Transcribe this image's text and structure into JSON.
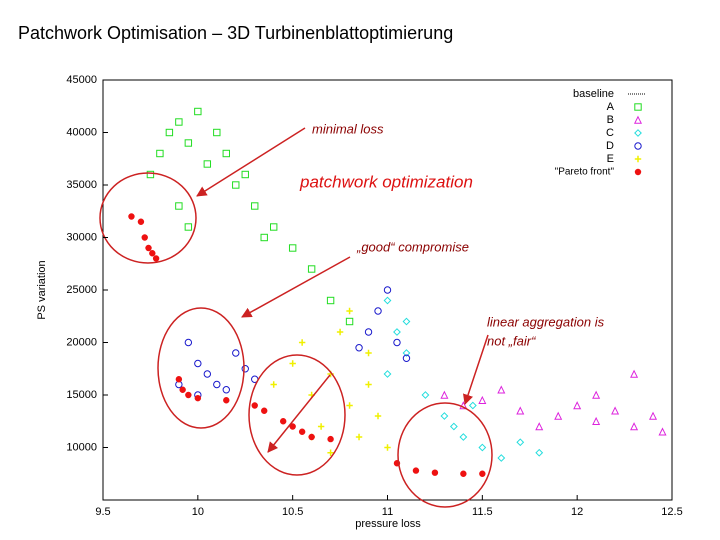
{
  "title": "Patchwork Optimisation – 3D Turbinenblattoptimierung",
  "chart_data": {
    "type": "scatter",
    "x_label": "pressure loss",
    "y_label": "PS variation",
    "xlim": [
      9.5,
      12.5
    ],
    "xticks": [
      9.5,
      10,
      10.5,
      11,
      11.5,
      12,
      12.5
    ],
    "ylim": [
      5000,
      45000
    ],
    "yticks": [
      10000,
      15000,
      20000,
      25000,
      30000,
      35000,
      40000,
      45000
    ],
    "legend": "upper right",
    "annotations": [
      "minimal loss",
      "patchwork optimization",
      "„good“ compromise",
      "linear aggregation is",
      "not „fair“"
    ],
    "series": [
      {
        "name": "baseline",
        "color": "#000000",
        "marker": "dotted-line",
        "x": [],
        "values": []
      },
      {
        "name": "A",
        "color": "#22dd22",
        "marker": "square",
        "x": [
          9.75,
          9.8,
          9.85,
          9.9,
          9.95,
          10.0,
          10.05,
          10.1,
          10.15,
          10.2,
          10.3,
          10.4,
          10.5,
          9.9,
          9.95,
          10.6,
          10.7,
          10.8,
          10.25,
          10.35
        ],
        "values": [
          36000,
          38000,
          40000,
          41000,
          39000,
          42000,
          37000,
          40000,
          38000,
          35000,
          33000,
          31000,
          29000,
          33000,
          31000,
          27000,
          24000,
          22000,
          36000,
          30000
        ]
      },
      {
        "name": "B",
        "color": "#dd22dd",
        "marker": "triangle",
        "x": [
          11.3,
          11.5,
          11.7,
          11.9,
          12.1,
          12.3,
          12.45,
          11.6,
          12.0,
          12.2,
          11.8,
          12.4,
          11.4,
          12.1,
          12.3
        ],
        "values": [
          15000,
          14500,
          13500,
          13000,
          12500,
          12000,
          11500,
          15500,
          14000,
          13500,
          12000,
          13000,
          14000,
          15000,
          17000
        ]
      },
      {
        "name": "C",
        "color": "#22dddd",
        "marker": "diamond",
        "x": [
          11.0,
          11.05,
          11.1,
          11.0,
          11.2,
          11.3,
          11.4,
          11.5,
          11.6,
          11.7,
          11.35,
          11.8,
          11.45,
          11.1
        ],
        "values": [
          24000,
          21000,
          19000,
          17000,
          15000,
          13000,
          11000,
          10000,
          9000,
          10500,
          12000,
          9500,
          14000,
          22000
        ]
      },
      {
        "name": "D",
        "color": "#1a1acc",
        "marker": "circle",
        "x": [
          9.95,
          10.0,
          10.05,
          10.1,
          10.15,
          10.2,
          10.25,
          10.3,
          9.9,
          10.0,
          10.9,
          10.95,
          11.0,
          11.05,
          11.1,
          10.85
        ],
        "values": [
          20000,
          18000,
          17000,
          16000,
          15500,
          19000,
          17500,
          16500,
          16000,
          15000,
          21000,
          23000,
          25000,
          20000,
          18500,
          19500
        ]
      },
      {
        "name": "E",
        "color": "#f0f000",
        "marker": "cross",
        "x": [
          10.4,
          10.5,
          10.55,
          10.6,
          10.65,
          10.7,
          10.75,
          10.8,
          10.85,
          10.9,
          10.95,
          11.0,
          10.7,
          10.8,
          10.9,
          10.6
        ],
        "values": [
          16000,
          18000,
          20000,
          15000,
          12000,
          17000,
          21000,
          14000,
          11000,
          16000,
          13000,
          10000,
          9500,
          23000,
          19000,
          11000
        ]
      },
      {
        "name": "\"Pareto front\"",
        "color": "#ee1111",
        "marker": "dot",
        "x": [
          9.65,
          9.7,
          9.72,
          9.74,
          9.76,
          9.78,
          9.9,
          9.92,
          9.95,
          10.0,
          10.15,
          10.3,
          10.35,
          10.45,
          10.5,
          10.55,
          10.6,
          10.7,
          11.05,
          11.15,
          11.25,
          11.4,
          11.5
        ],
        "values": [
          32000,
          31500,
          30000,
          29000,
          28500,
          28000,
          16500,
          15500,
          15000,
          14700,
          14500,
          14000,
          13500,
          12500,
          12000,
          11500,
          11000,
          10800,
          8500,
          7800,
          7600,
          7500,
          7500
        ]
      }
    ]
  }
}
